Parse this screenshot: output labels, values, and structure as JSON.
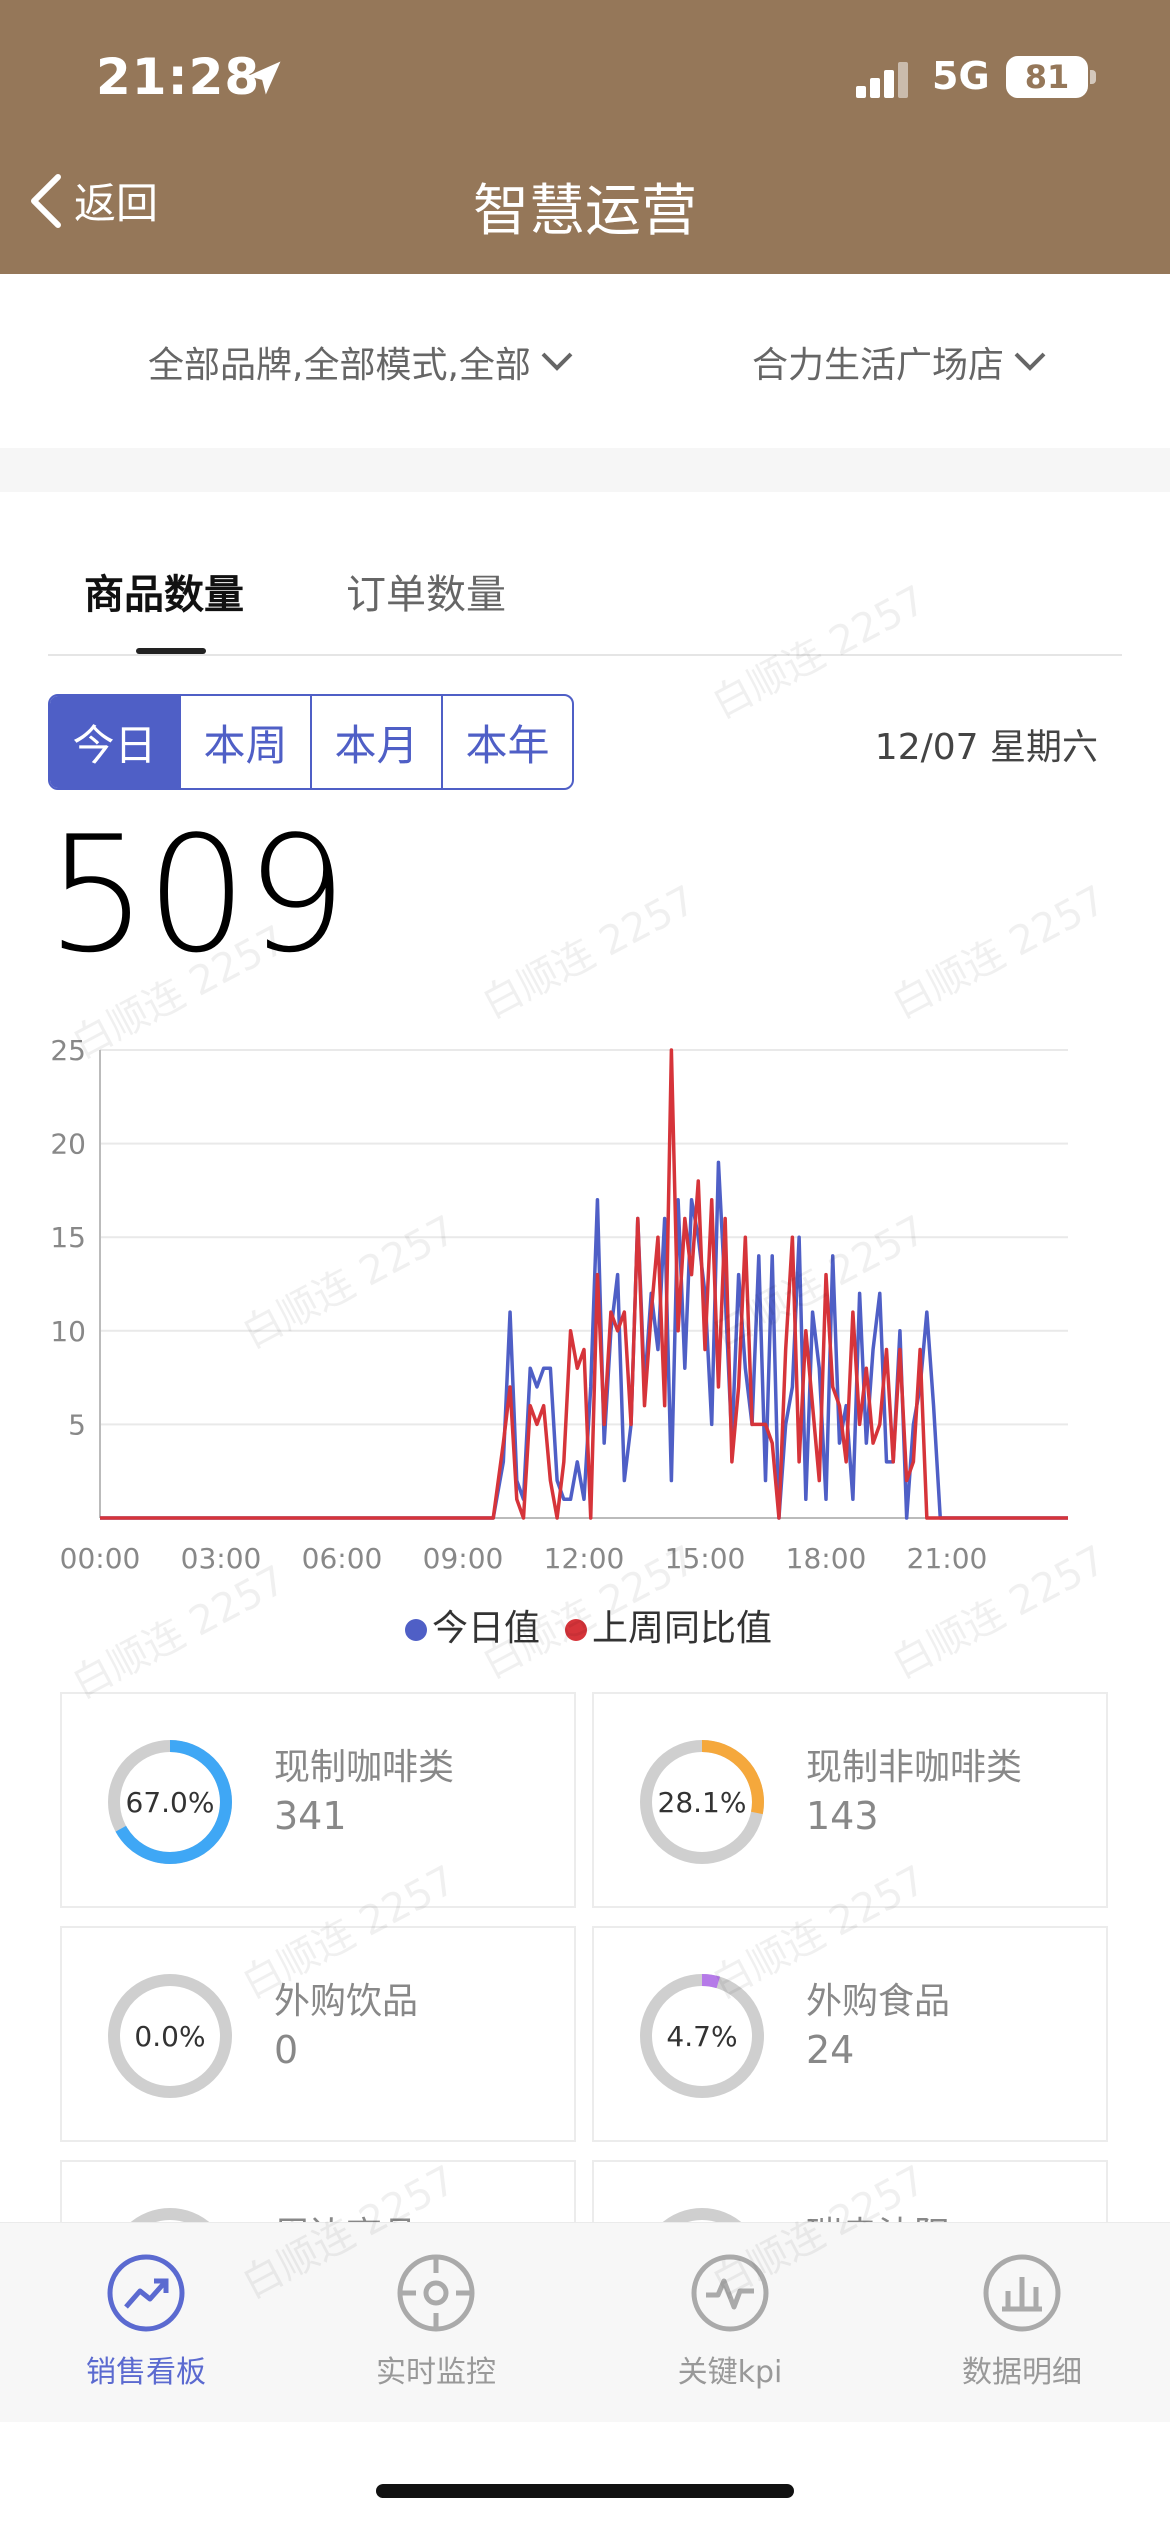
{
  "status_bar": {
    "time": "21:28",
    "network": "5G",
    "battery": "81"
  },
  "nav": {
    "back_label": "返回",
    "title": "智慧运营"
  },
  "filters": {
    "scope": "全部品牌,全部模式,全部",
    "store": "合力生活广场店"
  },
  "tabs": [
    {
      "label": "商品数量",
      "active": true
    },
    {
      "label": "订单数量",
      "active": false
    }
  ],
  "periods": [
    "今日",
    "本周",
    "本月",
    "本年"
  ],
  "selected_period": "今日",
  "date": "12/07 星期六",
  "total": "509",
  "watermark": "白顺连 2257",
  "chart_data": {
    "type": "line",
    "x": [
      "09:45",
      "10:00",
      "10:10",
      "10:20",
      "10:30",
      "10:40",
      "10:50",
      "11:00",
      "11:10",
      "11:20",
      "11:30",
      "11:40",
      "11:50",
      "12:00",
      "12:10",
      "12:20",
      "12:30",
      "12:40",
      "12:50",
      "13:00",
      "13:10",
      "13:20",
      "13:30",
      "13:40",
      "13:50",
      "14:00",
      "14:10",
      "14:20",
      "14:30",
      "14:40",
      "14:50",
      "15:00",
      "15:10",
      "15:20",
      "15:30",
      "15:40",
      "15:50",
      "16:00",
      "16:10",
      "16:20",
      "16:30",
      "16:40",
      "16:50",
      "17:00",
      "17:10",
      "17:20",
      "17:30",
      "17:40",
      "17:50",
      "18:00",
      "18:10",
      "18:20",
      "18:30",
      "18:40",
      "18:50",
      "19:00",
      "19:10",
      "19:20",
      "19:30",
      "19:40",
      "19:50",
      "20:00",
      "20:10",
      "20:20",
      "20:30",
      "20:40",
      "20:50",
      "21:00",
      "21:10",
      "21:20",
      "21:30"
    ],
    "x_ticks": [
      "00:00",
      "03:00",
      "06:00",
      "09:00",
      "12:00",
      "15:00",
      "18:00",
      "21:00"
    ],
    "y_ticks": [
      "5",
      "10",
      "15",
      "20",
      "25"
    ],
    "ylim": [
      0,
      25
    ],
    "series": [
      {
        "name": "今日值",
        "color": "#4f5fc6",
        "values": [
          0,
          3,
          11,
          2,
          1,
          8,
          7,
          8,
          8,
          2,
          1,
          1,
          3,
          1,
          7,
          17,
          4,
          10,
          13,
          2,
          5,
          16,
          7,
          12,
          9,
          16,
          2,
          17,
          8,
          17,
          15,
          12,
          5,
          19,
          12,
          4,
          13,
          8,
          5,
          14,
          2,
          14,
          0,
          5,
          7,
          15,
          1,
          11,
          8,
          1,
          14,
          4,
          6,
          1,
          12,
          4,
          9,
          12,
          3,
          3,
          10,
          0,
          5,
          7,
          11,
          6,
          0,
          0,
          0,
          0,
          0
        ]
      },
      {
        "name": "上周同比值",
        "color": "#d6343a",
        "values": [
          0,
          4,
          7,
          1,
          0,
          6,
          5,
          6,
          2,
          0,
          3,
          10,
          8,
          9,
          0,
          13,
          5,
          11,
          10,
          11,
          5,
          16,
          6,
          11,
          15,
          6,
          25,
          10,
          16,
          13,
          18,
          9,
          17,
          7,
          16,
          3,
          7,
          15,
          5,
          5,
          5,
          4,
          0,
          9,
          15,
          3,
          10,
          6,
          2,
          13,
          7,
          6,
          3,
          11,
          5,
          8,
          4,
          5,
          9,
          3,
          9,
          2,
          3,
          9,
          0,
          0,
          0,
          0,
          0,
          0,
          0
        ]
      }
    ],
    "legend": "bottom-center"
  },
  "categories": [
    {
      "label": "现制咖啡类",
      "value": "341",
      "percent": "67.0%",
      "fraction": 0.67,
      "color": "#3fa7f5"
    },
    {
      "label": "现制非咖啡类",
      "value": "143",
      "percent": "28.1%",
      "fraction": 0.281,
      "color": "#f5a83c"
    },
    {
      "label": "外购饮品",
      "value": "0",
      "percent": "0.0%",
      "fraction": 0.0,
      "color": "#999999"
    },
    {
      "label": "外购食品",
      "value": "24",
      "percent": "4.7%",
      "fraction": 0.047,
      "color": "#b57ae8"
    },
    {
      "label": "周边商品",
      "value": "",
      "percent": "",
      "fraction": 0,
      "color": "#cccccc"
    },
    {
      "label": "瑞幸沈阳",
      "value": "",
      "percent": "",
      "fraction": 0,
      "color": "#cccccc"
    }
  ],
  "bottom_nav": [
    {
      "label": "销售看板",
      "icon": "trend-icon",
      "active": true
    },
    {
      "label": "实时监控",
      "icon": "target-icon",
      "active": false
    },
    {
      "label": "关键kpi",
      "icon": "pulse-icon",
      "active": false
    },
    {
      "label": "数据明细",
      "icon": "bar-chart-icon",
      "active": false
    }
  ]
}
